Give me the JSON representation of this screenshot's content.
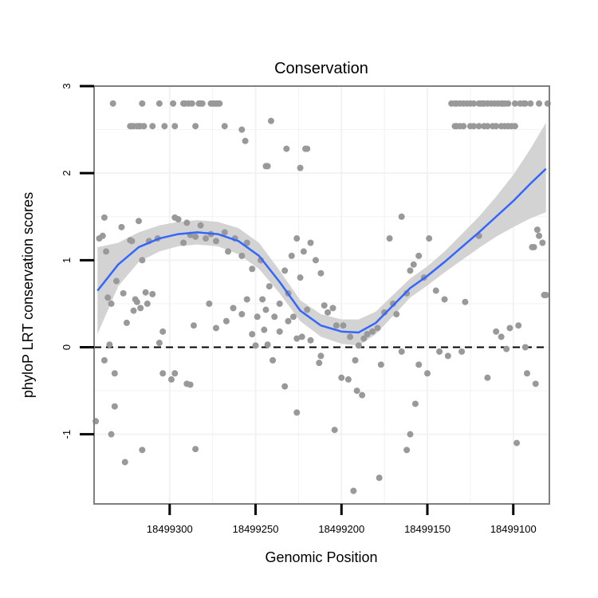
{
  "chart_data": {
    "type": "scatter",
    "title": "Conservation",
    "xlabel": "Genomic Position",
    "ylabel": "phyloP LRT conservation scores",
    "x_reversed": true,
    "xlim": [
      18499344,
      18499079
    ],
    "ylim": [
      -1.8,
      3.0
    ],
    "xticks": [
      18499300,
      18499250,
      18499200,
      18499150,
      18499100
    ],
    "xtick_labels": [
      "18499300",
      "18499250",
      "18499200",
      "18499150",
      "18499100"
    ],
    "yticks": [
      -1,
      0,
      1,
      2,
      3
    ],
    "ytick_labels": [
      "-1",
      "0",
      "1",
      "2",
      "3"
    ],
    "reference_line_y": 0,
    "grid": true,
    "colors": {
      "points": "#999999",
      "smooth_line": "#3366ff",
      "confidence_band": "#d3d3d3",
      "panel_border": "#7f7f7f",
      "gridlines": "#f2f2f2",
      "reference_line": "#000000"
    },
    "points": [
      [
        18499333,
        2.8
      ],
      [
        18499316,
        2.8
      ],
      [
        18499306,
        2.8
      ],
      [
        18499298,
        2.8
      ],
      [
        18499292,
        2.8
      ],
      [
        18499291,
        2.8
      ],
      [
        18499289,
        2.8
      ],
      [
        18499287,
        2.8
      ],
      [
        18499283,
        2.8
      ],
      [
        18499282,
        2.8
      ],
      [
        18499281,
        2.8
      ],
      [
        18499276,
        2.8
      ],
      [
        18499275,
        2.8
      ],
      [
        18499274,
        2.8
      ],
      [
        18499273,
        2.8
      ],
      [
        18499272,
        2.8
      ],
      [
        18499271,
        2.8
      ],
      [
        18499323,
        2.54
      ],
      [
        18499322,
        2.54
      ],
      [
        18499321,
        2.54
      ],
      [
        18499319,
        2.54
      ],
      [
        18499318,
        2.54
      ],
      [
        18499317,
        2.54
      ],
      [
        18499315,
        2.54
      ],
      [
        18499310,
        2.54
      ],
      [
        18499303,
        2.54
      ],
      [
        18499297,
        2.54
      ],
      [
        18499285,
        2.54
      ],
      [
        18499268,
        2.54
      ],
      [
        18499258,
        2.5
      ],
      [
        18499256,
        2.37
      ],
      [
        18499244,
        2.08
      ],
      [
        18499243,
        2.08
      ],
      [
        18499241,
        2.6
      ],
      [
        18499232,
        2.28
      ],
      [
        18499224,
        2.06
      ],
      [
        18499221,
        2.28
      ],
      [
        18499220,
        2.28
      ],
      [
        18499136,
        2.8
      ],
      [
        18499134,
        2.8
      ],
      [
        18499133,
        2.8
      ],
      [
        18499131,
        2.8
      ],
      [
        18499129,
        2.8
      ],
      [
        18499127,
        2.8
      ],
      [
        18499125,
        2.8
      ],
      [
        18499123,
        2.8
      ],
      [
        18499120,
        2.8
      ],
      [
        18499119,
        2.8
      ],
      [
        18499118,
        2.8
      ],
      [
        18499117,
        2.8
      ],
      [
        18499115,
        2.8
      ],
      [
        18499113,
        2.8
      ],
      [
        18499111,
        2.8
      ],
      [
        18499109,
        2.8
      ],
      [
        18499107,
        2.8
      ],
      [
        18499106,
        2.8
      ],
      [
        18499105,
        2.8
      ],
      [
        18499103,
        2.8
      ],
      [
        18499099,
        2.8
      ],
      [
        18499096,
        2.8
      ],
      [
        18499094,
        2.8
      ],
      [
        18499093,
        2.8
      ],
      [
        18499090,
        2.8
      ],
      [
        18499085,
        2.8
      ],
      [
        18499080,
        2.8
      ],
      [
        18499134,
        2.54
      ],
      [
        18499133,
        2.54
      ],
      [
        18499131,
        2.54
      ],
      [
        18499129,
        2.54
      ],
      [
        18499125,
        2.54
      ],
      [
        18499123,
        2.54
      ],
      [
        18499120,
        2.54
      ],
      [
        18499117,
        2.54
      ],
      [
        18499115,
        2.54
      ],
      [
        18499112,
        2.54
      ],
      [
        18499110,
        2.54
      ],
      [
        18499107,
        2.54
      ],
      [
        18499105,
        2.54
      ],
      [
        18499103,
        2.54
      ],
      [
        18499101,
        2.54
      ],
      [
        18499099,
        2.54
      ],
      [
        18499341,
        1.25
      ],
      [
        18499339,
        1.28
      ],
      [
        18499338,
        1.49
      ],
      [
        18499337,
        1.1
      ],
      [
        18499336,
        0.57
      ],
      [
        18499334,
        0.5
      ],
      [
        18499331,
        0.76
      ],
      [
        18499328,
        1.38
      ],
      [
        18499327,
        0.62
      ],
      [
        18499323,
        1.23
      ],
      [
        18499322,
        1.22
      ],
      [
        18499321,
        0.42
      ],
      [
        18499319,
        0.52
      ],
      [
        18499318,
        1.45
      ],
      [
        18499316,
        1.0
      ],
      [
        18499314,
        0.63
      ],
      [
        18499312,
        1.22
      ],
      [
        18499310,
        0.61
      ],
      [
        18499307,
        1.25
      ],
      [
        18499304,
        0.18
      ],
      [
        18499297,
        1.49
      ],
      [
        18499295,
        1.47
      ],
      [
        18499292,
        1.2
      ],
      [
        18499290,
        1.43
      ],
      [
        18499288,
        1.29
      ],
      [
        18499285,
        1.27
      ],
      [
        18499282,
        1.4
      ],
      [
        18499279,
        1.25
      ],
      [
        18499276,
        1.3
      ],
      [
        18499273,
        1.22
      ],
      [
        18499268,
        1.32
      ],
      [
        18499266,
        1.1
      ],
      [
        18499262,
        1.25
      ],
      [
        18499258,
        1.05
      ],
      [
        18499255,
        1.2
      ],
      [
        18499252,
        0.9
      ],
      [
        18499247,
        1.0
      ],
      [
        18499246,
        0.55
      ],
      [
        18499244,
        0.43
      ],
      [
        18499242,
        0.7
      ],
      [
        18499239,
        0.35
      ],
      [
        18499236,
        0.5
      ],
      [
        18499233,
        0.88
      ],
      [
        18499231,
        0.62
      ],
      [
        18499229,
        1.05
      ],
      [
        18499226,
        1.25
      ],
      [
        18499224,
        0.8
      ],
      [
        18499222,
        1.1
      ],
      [
        18499218,
        1.2
      ],
      [
        18499215,
        1.0
      ],
      [
        18499212,
        0.85
      ],
      [
        18499210,
        0.48
      ],
      [
        18499208,
        0.4
      ],
      [
        18499205,
        0.45
      ],
      [
        18499203,
        0.25
      ],
      [
        18499335,
        0.03
      ],
      [
        18499332,
        -0.3
      ],
      [
        18499325,
        0.28
      ],
      [
        18499320,
        0.55
      ],
      [
        18499317,
        0.45
      ],
      [
        18499313,
        0.5
      ],
      [
        18499306,
        0.05
      ],
      [
        18499304,
        -0.3
      ],
      [
        18499299,
        -0.37
      ],
      [
        18499297,
        -0.3
      ],
      [
        18499288,
        -0.43
      ],
      [
        18499286,
        0.25
      ],
      [
        18499277,
        0.5
      ],
      [
        18499273,
        0.22
      ],
      [
        18499267,
        0.3
      ],
      [
        18499263,
        0.45
      ],
      [
        18499258,
        0.38
      ],
      [
        18499255,
        0.55
      ],
      [
        18499252,
        0.15
      ],
      [
        18499250,
        0.02
      ],
      [
        18499249,
        0.35
      ],
      [
        18499245,
        0.2
      ],
      [
        18499243,
        0.03
      ],
      [
        18499240,
        -0.15
      ],
      [
        18499236,
        0.18
      ],
      [
        18499233,
        -0.45
      ],
      [
        18499231,
        0.3
      ],
      [
        18499228,
        0.35
      ],
      [
        18499226,
        0.1
      ],
      [
        18499223,
        0.12
      ],
      [
        18499220,
        0.43
      ],
      [
        18499218,
        0.08
      ],
      [
        18499213,
        -0.18
      ],
      [
        18499343,
        -0.85
      ],
      [
        18499338,
        -0.15
      ],
      [
        18499334,
        -1.0
      ],
      [
        18499332,
        -0.68
      ],
      [
        18499326,
        -1.32
      ],
      [
        18499316,
        -1.18
      ],
      [
        18499290,
        -0.42
      ],
      [
        18499285,
        -1.17
      ],
      [
        18499226,
        -0.75
      ],
      [
        18499212,
        -0.1
      ],
      [
        18499204,
        -0.95
      ],
      [
        18499200,
        -0.35
      ],
      [
        18499196,
        -0.37
      ],
      [
        18499193,
        -1.65
      ],
      [
        18499191,
        -0.5
      ],
      [
        18499188,
        -0.55
      ],
      [
        18499178,
        -1.5
      ],
      [
        18499165,
        -0.05
      ],
      [
        18499162,
        -1.18
      ],
      [
        18499160,
        -1.0
      ],
      [
        18499157,
        -0.65
      ],
      [
        18499155,
        -0.2
      ],
      [
        18499150,
        -0.3
      ],
      [
        18499143,
        -0.05
      ],
      [
        18499138,
        -0.1
      ],
      [
        18499130,
        -0.05
      ],
      [
        18499115,
        -0.35
      ],
      [
        18499104,
        -0.02
      ],
      [
        18499098,
        -1.1
      ],
      [
        18499092,
        -0.3
      ],
      [
        18499087,
        -0.42
      ],
      [
        18499199,
        0.25
      ],
      [
        18499195,
        0.12
      ],
      [
        18499192,
        -0.15
      ],
      [
        18499190,
        0.02
      ],
      [
        18499187,
        0.1
      ],
      [
        18499185,
        0.15
      ],
      [
        18499182,
        0.18
      ],
      [
        18499179,
        0.22
      ],
      [
        18499177,
        -0.2
      ],
      [
        18499175,
        0.4
      ],
      [
        18499172,
        1.25
      ],
      [
        18499170,
        0.5
      ],
      [
        18499168,
        0.38
      ],
      [
        18499165,
        1.5
      ],
      [
        18499162,
        0.62
      ],
      [
        18499160,
        0.88
      ],
      [
        18499158,
        0.95
      ],
      [
        18499155,
        1.05
      ],
      [
        18499152,
        0.8
      ],
      [
        18499149,
        1.25
      ],
      [
        18499145,
        0.65
      ],
      [
        18499140,
        0.55
      ],
      [
        18499128,
        0.52
      ],
      [
        18499120,
        1.28
      ],
      [
        18499110,
        0.18
      ],
      [
        18499107,
        0.12
      ],
      [
        18499102,
        0.22
      ],
      [
        18499097,
        0.25
      ],
      [
        18499093,
        0.0
      ],
      [
        18499086,
        1.35
      ],
      [
        18499085,
        1.28
      ],
      [
        18499083,
        1.2
      ],
      [
        18499082,
        0.6
      ],
      [
        18499081,
        0.6
      ],
      [
        18499089,
        1.15
      ],
      [
        18499088,
        1.15
      ]
    ],
    "smooth": {
      "x": [
        18499342,
        18499330,
        18499318,
        18499306,
        18499295,
        18499284,
        18499272,
        18499260,
        18499248,
        18499236,
        18499224,
        18499212,
        18499200,
        18499190,
        18499180,
        18499170,
        18499160,
        18499150,
        18499140,
        18499130,
        18499120,
        18499110,
        18499100,
        18499090,
        18499081
      ],
      "y": [
        0.65,
        0.95,
        1.15,
        1.25,
        1.3,
        1.32,
        1.3,
        1.22,
        1.05,
        0.75,
        0.42,
        0.25,
        0.18,
        0.17,
        0.28,
        0.48,
        0.68,
        0.82,
        0.98,
        1.15,
        1.32,
        1.5,
        1.68,
        1.88,
        2.05
      ],
      "lower": [
        0.15,
        0.7,
        0.98,
        1.1,
        1.16,
        1.18,
        1.16,
        1.07,
        0.9,
        0.62,
        0.3,
        0.12,
        0.04,
        0.02,
        0.15,
        0.36,
        0.57,
        0.71,
        0.86,
        1.0,
        1.14,
        1.27,
        1.38,
        1.48,
        1.55
      ],
      "upper": [
        1.15,
        1.2,
        1.32,
        1.4,
        1.44,
        1.46,
        1.44,
        1.37,
        1.2,
        0.88,
        0.54,
        0.38,
        0.32,
        0.32,
        0.41,
        0.6,
        0.79,
        0.93,
        1.1,
        1.3,
        1.5,
        1.73,
        1.98,
        2.28,
        2.58
      ]
    }
  }
}
